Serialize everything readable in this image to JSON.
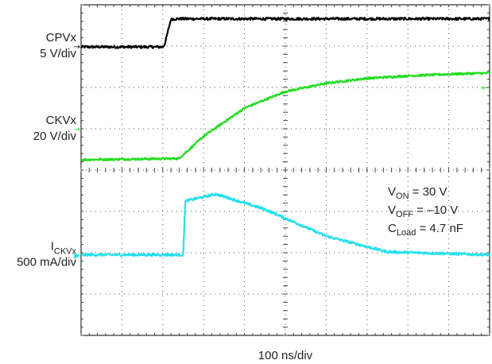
{
  "chart_data": {
    "type": "line",
    "title": "",
    "xlabel": "100 ns/div",
    "ylabel": "",
    "x_unit": "ns",
    "x_divisions": 10,
    "ns_per_div": 100,
    "y_divisions": 8,
    "grid": true,
    "background": "#ffffff",
    "series": [
      {
        "name": "CPVx",
        "label_main": "CPVx",
        "label_sub": "",
        "scale": "5 V/div",
        "color": "#000000",
        "marker": "→",
        "marker_side": "left",
        "marker_div": 7.0,
        "noise": 0.03,
        "points": [
          [
            0,
            6.98
          ],
          [
            200,
            6.98
          ],
          [
            205,
            7.05
          ],
          [
            220,
            7.65
          ],
          [
            240,
            7.66
          ],
          [
            1000,
            7.66
          ]
        ]
      },
      {
        "name": "CKVx",
        "label_main": "CKVx",
        "label_sub": "",
        "scale": "20 V/div",
        "color": "#22dd22",
        "marker": "→",
        "marker_side": "left",
        "marker_div": 5.0,
        "marker2": "←",
        "marker2_side": "right",
        "marker2_div": 6.0,
        "noise": 0.025,
        "points": [
          [
            0,
            4.25
          ],
          [
            240,
            4.28
          ],
          [
            300,
            4.82
          ],
          [
            400,
            5.5
          ],
          [
            500,
            5.9
          ],
          [
            600,
            6.1
          ],
          [
            700,
            6.22
          ],
          [
            800,
            6.28
          ],
          [
            900,
            6.32
          ],
          [
            1000,
            6.35
          ]
        ]
      },
      {
        "name": "ICKVx",
        "label_main": "I",
        "label_sub": "CKVx",
        "scale": "500 mA/div",
        "color": "#22e0ee",
        "marker": "▶",
        "marker_side": "left",
        "marker_div": 1.95,
        "noise": 0.03,
        "points": [
          [
            0,
            1.95
          ],
          [
            250,
            1.95
          ],
          [
            255,
            3.25
          ],
          [
            330,
            3.42
          ],
          [
            450,
            3.05
          ],
          [
            600,
            2.4
          ],
          [
            750,
            2.02
          ],
          [
            1000,
            1.95
          ]
        ]
      }
    ],
    "annotations": [
      {
        "main": "V",
        "sub": "ON",
        "rest": " = 30 V"
      },
      {
        "main": "V",
        "sub": "OFF",
        "rest": " = –10 V"
      },
      {
        "main": "C",
        "sub": "Load",
        "rest": " = 4.7 nF"
      }
    ]
  }
}
